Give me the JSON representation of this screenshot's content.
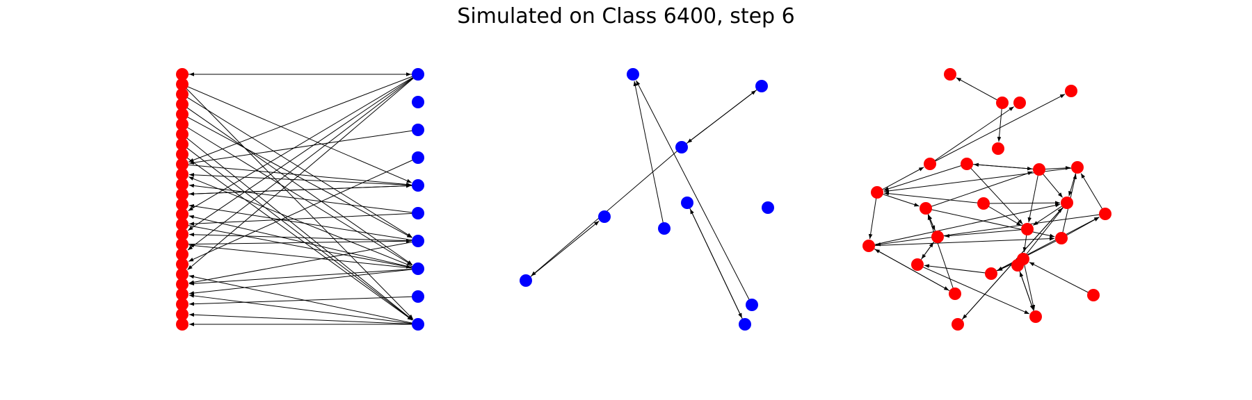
{
  "title": "Simulated on Class 6400, step 6",
  "colors": {
    "red_node": "#ff0000",
    "blue_node": "#0000ff",
    "edge": "#000000"
  },
  "panels": [
    {
      "name": "bipartite",
      "nodes": [
        {
          "id": "r0",
          "c": "red"
        },
        {
          "id": "r1",
          "c": "red"
        },
        {
          "id": "r2",
          "c": "red"
        },
        {
          "id": "r3",
          "c": "red"
        },
        {
          "id": "r4",
          "c": "red"
        },
        {
          "id": "r5",
          "c": "red"
        },
        {
          "id": "r6",
          "c": "red"
        },
        {
          "id": "r7",
          "c": "red"
        },
        {
          "id": "r8",
          "c": "red"
        },
        {
          "id": "r9",
          "c": "red"
        },
        {
          "id": "r10",
          "c": "red"
        },
        {
          "id": "r11",
          "c": "red"
        },
        {
          "id": "r12",
          "c": "red"
        },
        {
          "id": "r13",
          "c": "red"
        },
        {
          "id": "r14",
          "c": "red"
        },
        {
          "id": "r15",
          "c": "red"
        },
        {
          "id": "r16",
          "c": "red"
        },
        {
          "id": "r17",
          "c": "red"
        },
        {
          "id": "r18",
          "c": "red"
        },
        {
          "id": "r19",
          "c": "red"
        },
        {
          "id": "r20",
          "c": "red"
        },
        {
          "id": "r21",
          "c": "red"
        },
        {
          "id": "r22",
          "c": "red"
        },
        {
          "id": "r23",
          "c": "red"
        },
        {
          "id": "r24",
          "c": "red"
        },
        {
          "id": "r25",
          "c": "red"
        },
        {
          "id": "b0",
          "c": "blue"
        },
        {
          "id": "b1",
          "c": "blue"
        },
        {
          "id": "b2",
          "c": "blue"
        },
        {
          "id": "b3",
          "c": "blue"
        },
        {
          "id": "b4",
          "c": "blue"
        },
        {
          "id": "b5",
          "c": "blue"
        },
        {
          "id": "b6",
          "c": "blue"
        },
        {
          "id": "b7",
          "c": "blue"
        },
        {
          "id": "b8",
          "c": "blue"
        },
        {
          "id": "b9",
          "c": "blue"
        }
      ],
      "edges": [
        [
          "b0",
          "r0"
        ],
        [
          "r0",
          "b0"
        ],
        [
          "b0",
          "r9"
        ],
        [
          "b0",
          "r14"
        ],
        [
          "b0",
          "r16"
        ],
        [
          "b0",
          "r18"
        ],
        [
          "b0",
          "r20"
        ],
        [
          "b2",
          "r9"
        ],
        [
          "b3",
          "r19"
        ],
        [
          "r1",
          "b4"
        ],
        [
          "b4",
          "r10"
        ],
        [
          "b4",
          "r12"
        ],
        [
          "r9",
          "b4"
        ],
        [
          "r12",
          "b4"
        ],
        [
          "b5",
          "r11"
        ],
        [
          "b5",
          "r15"
        ],
        [
          "r2",
          "b6"
        ],
        [
          "r4",
          "b6"
        ],
        [
          "b6",
          "r13"
        ],
        [
          "b6",
          "r16"
        ],
        [
          "b6",
          "r21"
        ],
        [
          "r17",
          "b6"
        ],
        [
          "r3",
          "b7"
        ],
        [
          "r5",
          "b7"
        ],
        [
          "b7",
          "r10"
        ],
        [
          "b7",
          "r14"
        ],
        [
          "b7",
          "r17"
        ],
        [
          "b7",
          "r21"
        ],
        [
          "b7",
          "r22"
        ],
        [
          "r15",
          "b7"
        ],
        [
          "b8",
          "r23"
        ],
        [
          "r1",
          "b9"
        ],
        [
          "r6",
          "b9"
        ],
        [
          "r7",
          "b9"
        ],
        [
          "r8",
          "b9"
        ],
        [
          "b9",
          "r20"
        ],
        [
          "b9",
          "r22"
        ],
        [
          "b9",
          "r24"
        ],
        [
          "b9",
          "r25"
        ]
      ]
    },
    {
      "name": "blue-graph",
      "nodes": [
        {
          "id": "u0",
          "c": "blue"
        },
        {
          "id": "u1",
          "c": "blue"
        },
        {
          "id": "u2",
          "c": "blue"
        },
        {
          "id": "u3",
          "c": "blue"
        },
        {
          "id": "u4",
          "c": "blue"
        },
        {
          "id": "u5",
          "c": "blue"
        },
        {
          "id": "u6",
          "c": "blue"
        },
        {
          "id": "u7",
          "c": "blue"
        },
        {
          "id": "u8",
          "c": "blue"
        },
        {
          "id": "u9",
          "c": "blue"
        }
      ],
      "edges": [
        [
          "u2",
          "u1"
        ],
        [
          "u1",
          "u2"
        ],
        [
          "u2",
          "u4"
        ],
        [
          "u4",
          "u3"
        ],
        [
          "u6",
          "u0"
        ],
        [
          "u8",
          "u0"
        ],
        [
          "u9",
          "u5"
        ],
        [
          "u5",
          "u9"
        ]
      ]
    },
    {
      "name": "red-graph",
      "nodes": [
        {
          "id": "n0",
          "c": "red"
        },
        {
          "id": "n1",
          "c": "red"
        },
        {
          "id": "n2",
          "c": "red"
        },
        {
          "id": "n3",
          "c": "red"
        },
        {
          "id": "n4",
          "c": "red"
        },
        {
          "id": "n5",
          "c": "red"
        },
        {
          "id": "n6",
          "c": "red"
        },
        {
          "id": "n7",
          "c": "red"
        },
        {
          "id": "n8",
          "c": "red"
        },
        {
          "id": "n9",
          "c": "red"
        },
        {
          "id": "n10",
          "c": "red"
        },
        {
          "id": "n11",
          "c": "red"
        },
        {
          "id": "n12",
          "c": "red"
        },
        {
          "id": "n13",
          "c": "red"
        },
        {
          "id": "n14",
          "c": "red"
        },
        {
          "id": "n15",
          "c": "red"
        },
        {
          "id": "n16",
          "c": "red"
        },
        {
          "id": "n17",
          "c": "red"
        },
        {
          "id": "n18",
          "c": "red"
        },
        {
          "id": "n19",
          "c": "red"
        },
        {
          "id": "n20",
          "c": "red"
        },
        {
          "id": "n21",
          "c": "red"
        },
        {
          "id": "n22",
          "c": "red"
        },
        {
          "id": "n23",
          "c": "red"
        },
        {
          "id": "n24",
          "c": "red"
        },
        {
          "id": "n25",
          "c": "red"
        }
      ],
      "edges": [
        [
          "n3",
          "n0"
        ],
        [
          "n3",
          "n4"
        ],
        [
          "n5",
          "n1"
        ],
        [
          "n5",
          "n2"
        ],
        [
          "n6",
          "n7"
        ],
        [
          "n7",
          "n6"
        ],
        [
          "n6",
          "n8"
        ],
        [
          "n7",
          "n10"
        ],
        [
          "n7",
          "n13"
        ],
        [
          "n8",
          "n17"
        ],
        [
          "n8",
          "n12"
        ],
        [
          "n9",
          "n8"
        ],
        [
          "n10",
          "n8"
        ],
        [
          "n10",
          "n11"
        ],
        [
          "n11",
          "n13"
        ],
        [
          "n12",
          "n14"
        ],
        [
          "n13",
          "n14"
        ],
        [
          "n14",
          "n12"
        ],
        [
          "n15",
          "n10"
        ],
        [
          "n16",
          "n10"
        ],
        [
          "n17",
          "n11"
        ],
        [
          "n13",
          "n20"
        ],
        [
          "n14",
          "n18"
        ],
        [
          "n18",
          "n14"
        ],
        [
          "n19",
          "n18"
        ],
        [
          "n18",
          "n22"
        ],
        [
          "n20",
          "n22"
        ],
        [
          "n21",
          "n20"
        ],
        [
          "n20",
          "n19"
        ],
        [
          "n15",
          "n17"
        ],
        [
          "n16",
          "n15"
        ],
        [
          "n9",
          "n11"
        ],
        [
          "n24",
          "n17"
        ],
        [
          "n17",
          "n24"
        ],
        [
          "n23",
          "n20"
        ],
        [
          "n25",
          "n11"
        ],
        [
          "n11",
          "n25"
        ],
        [
          "n12",
          "n16"
        ],
        [
          "n22",
          "n21"
        ],
        [
          "n24",
          "n12"
        ],
        [
          "n6",
          "n13"
        ],
        [
          "n7",
          "n11"
        ],
        [
          "n12",
          "n7"
        ],
        [
          "n8",
          "n5"
        ],
        [
          "n16",
          "n19"
        ],
        [
          "n19",
          "n15"
        ],
        [
          "n21",
          "n22"
        ],
        [
          "n17",
          "n16"
        ],
        [
          "n11",
          "n21"
        ],
        [
          "n9",
          "n13"
        ]
      ]
    }
  ]
}
